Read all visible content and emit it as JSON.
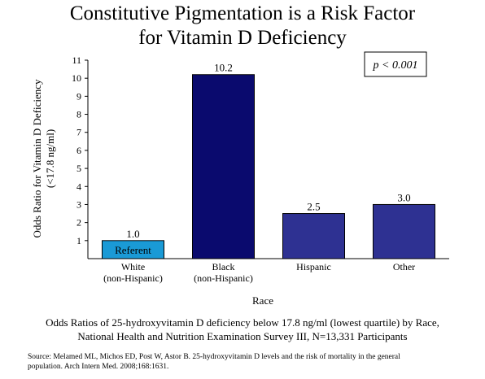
{
  "title_line1": "Constitutive Pigmentation is a Risk Factor",
  "title_line2": "for Vitamin D Deficiency",
  "annotation": "p < 0.001",
  "caption_line1": "Odds Ratios of  25-hydroxyvitamin D deficiency below 17.8 ng/ml (lowest quartile) by Race,",
  "caption_line2": "National Health and Nutrition Examination Survey III, N=13,331 Participants",
  "source_line1": "Source: Melamed ML, Michos ED, Post W, Astor B. 25-hydroxyvitamin D levels and the risk of mortality in the general",
  "source_line2": "population. Arch Intern Med.  2008;168:1631.",
  "chart_data": {
    "type": "bar",
    "title": "Constitutive Pigmentation is a Risk Factor for Vitamin D Deficiency",
    "xlabel": "Race",
    "ylabel_line1": "Odds Ratio for Vitamin D Deficiency",
    "ylabel_line2": "(<17.8 ng/ml)",
    "ylim": [
      0,
      11
    ],
    "yticks": [
      1,
      2,
      3,
      4,
      5,
      6,
      7,
      8,
      9,
      10,
      11
    ],
    "grid": false,
    "legend": "none",
    "categories": [
      [
        "White",
        "(non-Hispanic)"
      ],
      [
        "Black",
        "(non-Hispanic)"
      ],
      [
        "Hispanic"
      ],
      [
        "Other"
      ]
    ],
    "values": [
      1.0,
      10.2,
      2.5,
      3.0
    ],
    "value_labels": [
      "1.0",
      "10.2",
      "2.5",
      "3.0"
    ],
    "bar_inner_labels": [
      "Referent",
      "",
      "",
      ""
    ],
    "colors": [
      "#1a9ad6",
      "#0a0a6e",
      "#2e3192",
      "#2e3192"
    ]
  }
}
